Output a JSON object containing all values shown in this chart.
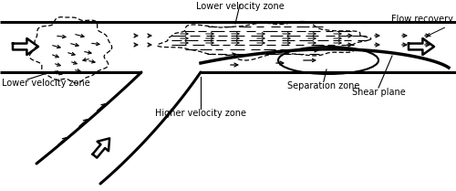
{
  "bg_color": "#ffffff",
  "lc": "#000000",
  "figsize": [
    5.0,
    2.09
  ],
  "dpi": 100,
  "labels": {
    "lower_velocity_top": "Lower velocity zone",
    "flow_recovery": "Flow recovery",
    "lower_velocity_left": "Lower velocity zone",
    "higher_velocity": "Higher velocity zone",
    "separation_zone": "Separation zone",
    "shear_plane": "Shear plane"
  }
}
